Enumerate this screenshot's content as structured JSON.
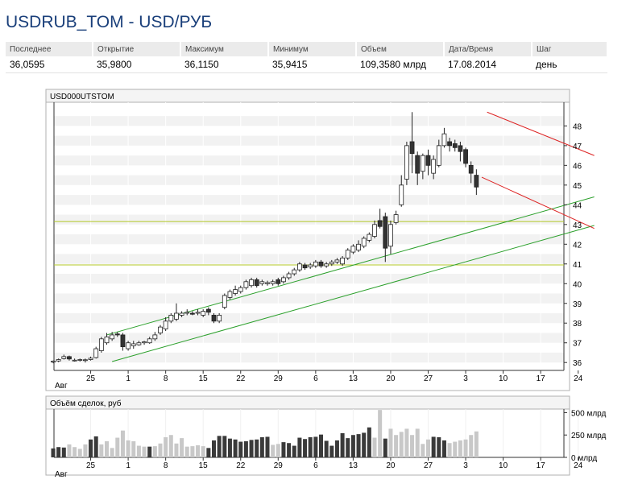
{
  "header": {
    "title": "USDRUB_TOM - USD/РУБ"
  },
  "quote": {
    "columns": [
      "Последнее",
      "Открытие",
      "Максимум",
      "Минимум",
      "Объем",
      "Дата/Время",
      "Шаг"
    ],
    "values": [
      "36,0595",
      "35,9800",
      "36,1150",
      "35,9415",
      "109,3580 млрд",
      "17.08.2014",
      "день"
    ]
  },
  "colors": {
    "up_fill": "#ffffff",
    "down_fill": "#333333",
    "trend_up": "#2ca02c",
    "trend_down": "#dd2222",
    "level": "#b3c726"
  },
  "chart_data": [
    {
      "type": "candlestick",
      "title": "USD000UTSTOM",
      "ylim": [
        35.6,
        49.2
      ],
      "yticks": [
        36,
        37,
        38,
        39,
        40,
        41,
        42,
        43,
        44,
        45,
        46,
        47,
        48
      ],
      "xtick_labels": [
        "25",
        "1",
        "8",
        "15",
        "22",
        "29",
        "6",
        "13",
        "20",
        "27",
        "3",
        "10",
        "17",
        "24"
      ],
      "xtick_index": [
        7,
        14,
        21,
        28,
        35,
        42,
        49,
        56,
        63,
        70,
        77,
        84,
        91,
        98
      ],
      "x_start_label": "Авг",
      "grid": true,
      "levels": [
        43.15,
        40.95
      ],
      "trendlines": [
        {
          "color": "trend_up",
          "from": [
            10,
            37.4
          ],
          "to": [
            101,
            44.4
          ]
        },
        {
          "color": "trend_up",
          "from": [
            11,
            36.05
          ],
          "to": [
            101,
            42.95
          ]
        },
        {
          "color": "trend_down",
          "from": [
            81,
            48.7
          ],
          "to": [
            101,
            46.5
          ]
        },
        {
          "color": "trend_down",
          "from": [
            80,
            45.4
          ],
          "to": [
            101,
            42.8
          ]
        }
      ],
      "candles": [
        [
          0,
          36.02,
          36.07,
          36.1,
          35.96
        ],
        [
          1,
          36.08,
          36.15,
          36.2,
          36.02
        ],
        [
          2,
          36.2,
          36.3,
          36.4,
          36.15
        ],
        [
          3,
          36.3,
          36.18,
          36.35,
          36.1
        ],
        [
          4,
          36.1,
          36.12,
          36.2,
          36.05
        ],
        [
          5,
          36.12,
          36.15,
          36.2,
          36.05
        ],
        [
          6,
          36.1,
          36.14,
          36.2,
          36.0
        ],
        [
          7,
          36.15,
          36.22,
          36.3,
          36.1
        ],
        [
          8,
          36.25,
          36.7,
          36.8,
          36.2
        ],
        [
          9,
          36.6,
          37.2,
          37.3,
          36.5
        ],
        [
          10,
          37.0,
          37.3,
          37.5,
          36.9
        ],
        [
          11,
          37.2,
          37.4,
          37.55,
          37.1
        ],
        [
          12,
          37.45,
          37.4,
          37.55,
          37.3
        ],
        [
          13,
          37.4,
          36.8,
          37.5,
          36.6
        ],
        [
          14,
          36.7,
          37.0,
          37.1,
          36.6
        ],
        [
          15,
          36.85,
          36.95,
          37.1,
          36.7
        ],
        [
          16,
          36.9,
          37.0,
          37.1,
          36.85
        ],
        [
          17,
          37.0,
          37.05,
          37.1,
          36.9
        ],
        [
          18,
          37.0,
          37.2,
          37.3,
          36.95
        ],
        [
          19,
          37.2,
          37.4,
          37.55,
          37.1
        ],
        [
          20,
          37.5,
          37.8,
          37.9,
          37.4
        ],
        [
          21,
          37.7,
          38.1,
          38.3,
          37.6
        ],
        [
          22,
          38.1,
          38.4,
          38.5,
          38.0
        ],
        [
          23,
          38.2,
          38.5,
          39.0,
          38.1
        ],
        [
          24,
          38.4,
          38.5,
          38.6,
          38.3
        ],
        [
          25,
          38.5,
          38.55,
          38.7,
          38.4
        ],
        [
          26,
          38.5,
          38.45,
          38.6,
          38.4
        ],
        [
          27,
          38.5,
          38.55,
          38.7,
          38.4
        ],
        [
          28,
          38.4,
          38.6,
          38.7,
          38.3
        ],
        [
          29,
          38.7,
          38.55,
          38.8,
          38.4
        ],
        [
          30,
          38.4,
          38.1,
          38.5,
          38.0
        ],
        [
          31,
          38.1,
          38.4,
          38.5,
          38.0
        ],
        [
          32,
          38.8,
          39.4,
          39.5,
          38.7
        ],
        [
          33,
          39.3,
          39.6,
          39.7,
          39.2
        ],
        [
          34,
          39.5,
          39.7,
          39.9,
          39.4
        ],
        [
          35,
          39.6,
          39.8,
          39.9,
          39.5
        ],
        [
          36,
          39.8,
          40.1,
          40.2,
          39.7
        ],
        [
          37,
          39.9,
          40.2,
          40.3,
          39.8
        ],
        [
          38,
          40.2,
          39.9,
          40.3,
          39.8
        ],
        [
          39,
          40.0,
          40.1,
          40.2,
          39.9
        ],
        [
          40,
          40.0,
          40.05,
          40.15,
          39.9
        ],
        [
          41,
          40.0,
          40.1,
          40.2,
          39.9
        ],
        [
          42,
          40.2,
          40.0,
          40.3,
          39.9
        ],
        [
          43,
          40.1,
          40.3,
          40.4,
          40.0
        ],
        [
          44,
          40.3,
          40.5,
          40.6,
          40.2
        ],
        [
          45,
          40.5,
          40.7,
          40.8,
          40.4
        ],
        [
          46,
          40.7,
          41.0,
          41.1,
          40.6
        ],
        [
          47,
          40.95,
          40.8,
          41.05,
          40.7
        ],
        [
          48,
          40.85,
          40.95,
          41.05,
          40.75
        ],
        [
          49,
          40.9,
          41.1,
          41.2,
          40.8
        ],
        [
          50,
          41.1,
          40.9,
          41.2,
          40.8
        ],
        [
          51,
          40.9,
          41.0,
          41.1,
          40.8
        ],
        [
          52,
          41.0,
          41.1,
          41.2,
          40.9
        ],
        [
          53,
          41.1,
          41.2,
          41.3,
          41.0
        ],
        [
          54,
          41.0,
          41.3,
          41.4,
          40.9
        ],
        [
          55,
          41.3,
          41.7,
          41.8,
          41.2
        ],
        [
          56,
          41.6,
          41.9,
          42.0,
          41.5
        ],
        [
          57,
          41.7,
          42.0,
          42.2,
          41.6
        ],
        [
          58,
          41.9,
          42.3,
          42.4,
          41.8
        ],
        [
          59,
          42.2,
          42.5,
          42.6,
          42.1
        ],
        [
          60,
          42.4,
          43.0,
          43.2,
          42.3
        ],
        [
          61,
          43.2,
          42.9,
          43.8,
          42.8
        ],
        [
          62,
          43.4,
          41.8,
          43.6,
          41.1
        ],
        [
          63,
          41.9,
          43.0,
          43.2,
          41.5
        ],
        [
          64,
          43.1,
          43.5,
          43.7,
          43.0
        ],
        [
          65,
          44.0,
          45.0,
          45.5,
          43.9
        ],
        [
          66,
          45.3,
          47.0,
          47.2,
          45.0
        ],
        [
          67,
          47.2,
          46.6,
          48.7,
          45.6
        ],
        [
          68,
          46.5,
          45.6,
          46.7,
          45.0
        ],
        [
          69,
          45.7,
          46.5,
          46.6,
          45.3
        ],
        [
          70,
          46.5,
          46.0,
          46.8,
          45.5
        ],
        [
          71,
          45.6,
          46.3,
          46.5,
          45.3
        ],
        [
          72,
          46.0,
          47.0,
          47.3,
          45.9
        ],
        [
          73,
          47.0,
          47.6,
          47.9,
          46.9
        ],
        [
          74,
          47.2,
          47.0,
          47.4,
          46.7
        ],
        [
          75,
          47.1,
          46.9,
          47.3,
          46.7
        ],
        [
          76,
          47.0,
          46.7,
          47.2,
          46.2
        ],
        [
          77,
          46.8,
          46.1,
          46.9,
          45.9
        ],
        [
          78,
          46.0,
          45.6,
          46.2,
          45.1
        ],
        [
          79,
          45.5,
          44.9,
          45.8,
          44.5
        ]
      ]
    },
    {
      "type": "bar",
      "title": "Объём сделок, руб",
      "yticks": [
        "0 млрд",
        "250 млрд",
        "500 млрд"
      ],
      "ytick_values": [
        0,
        250,
        500
      ],
      "ylim": [
        0,
        540
      ],
      "volumes": [
        [
          0,
          100,
          0
        ],
        [
          1,
          115,
          0
        ],
        [
          2,
          110,
          0
        ],
        [
          3,
          145,
          1
        ],
        [
          4,
          115,
          1
        ],
        [
          5,
          95,
          1
        ],
        [
          6,
          145,
          1
        ],
        [
          7,
          200,
          0
        ],
        [
          8,
          235,
          0
        ],
        [
          9,
          145,
          1
        ],
        [
          10,
          180,
          1
        ],
        [
          11,
          105,
          1
        ],
        [
          12,
          220,
          1
        ],
        [
          13,
          300,
          1
        ],
        [
          14,
          190,
          1
        ],
        [
          15,
          180,
          1
        ],
        [
          16,
          130,
          1
        ],
        [
          17,
          120,
          1
        ],
        [
          18,
          120,
          0
        ],
        [
          19,
          125,
          1
        ],
        [
          20,
          155,
          1
        ],
        [
          21,
          225,
          1
        ],
        [
          22,
          250,
          1
        ],
        [
          23,
          155,
          1
        ],
        [
          24,
          215,
          1
        ],
        [
          25,
          120,
          1
        ],
        [
          26,
          125,
          1
        ],
        [
          27,
          135,
          1
        ],
        [
          28,
          125,
          1
        ],
        [
          29,
          105,
          0
        ],
        [
          30,
          190,
          0
        ],
        [
          31,
          240,
          0
        ],
        [
          32,
          240,
          0
        ],
        [
          33,
          210,
          0
        ],
        [
          34,
          200,
          0
        ],
        [
          35,
          175,
          0
        ],
        [
          36,
          180,
          0
        ],
        [
          37,
          195,
          0
        ],
        [
          38,
          200,
          0
        ],
        [
          39,
          225,
          0
        ],
        [
          40,
          230,
          0
        ],
        [
          41,
          140,
          1
        ],
        [
          42,
          150,
          1
        ],
        [
          43,
          170,
          0
        ],
        [
          44,
          160,
          0
        ],
        [
          45,
          130,
          0
        ],
        [
          46,
          220,
          0
        ],
        [
          47,
          205,
          0
        ],
        [
          48,
          225,
          0
        ],
        [
          49,
          230,
          0
        ],
        [
          50,
          255,
          0
        ],
        [
          51,
          185,
          0
        ],
        [
          52,
          130,
          0
        ],
        [
          53,
          190,
          0
        ],
        [
          54,
          270,
          0
        ],
        [
          55,
          215,
          0
        ],
        [
          56,
          250,
          0
        ],
        [
          57,
          260,
          0
        ],
        [
          58,
          275,
          0
        ],
        [
          59,
          335,
          0
        ],
        [
          60,
          220,
          1
        ],
        [
          61,
          530,
          1
        ],
        [
          62,
          210,
          0
        ],
        [
          63,
          320,
          1
        ],
        [
          64,
          250,
          1
        ],
        [
          65,
          285,
          1
        ],
        [
          66,
          320,
          1
        ],
        [
          67,
          250,
          1
        ],
        [
          68,
          320,
          1
        ],
        [
          69,
          150,
          1
        ],
        [
          70,
          200,
          1
        ],
        [
          71,
          230,
          0
        ],
        [
          72,
          225,
          0
        ],
        [
          73,
          190,
          0
        ],
        [
          74,
          160,
          1
        ],
        [
          75,
          175,
          1
        ],
        [
          76,
          190,
          1
        ],
        [
          77,
          200,
          1
        ],
        [
          78,
          250,
          1
        ],
        [
          79,
          290,
          1
        ]
      ]
    }
  ]
}
